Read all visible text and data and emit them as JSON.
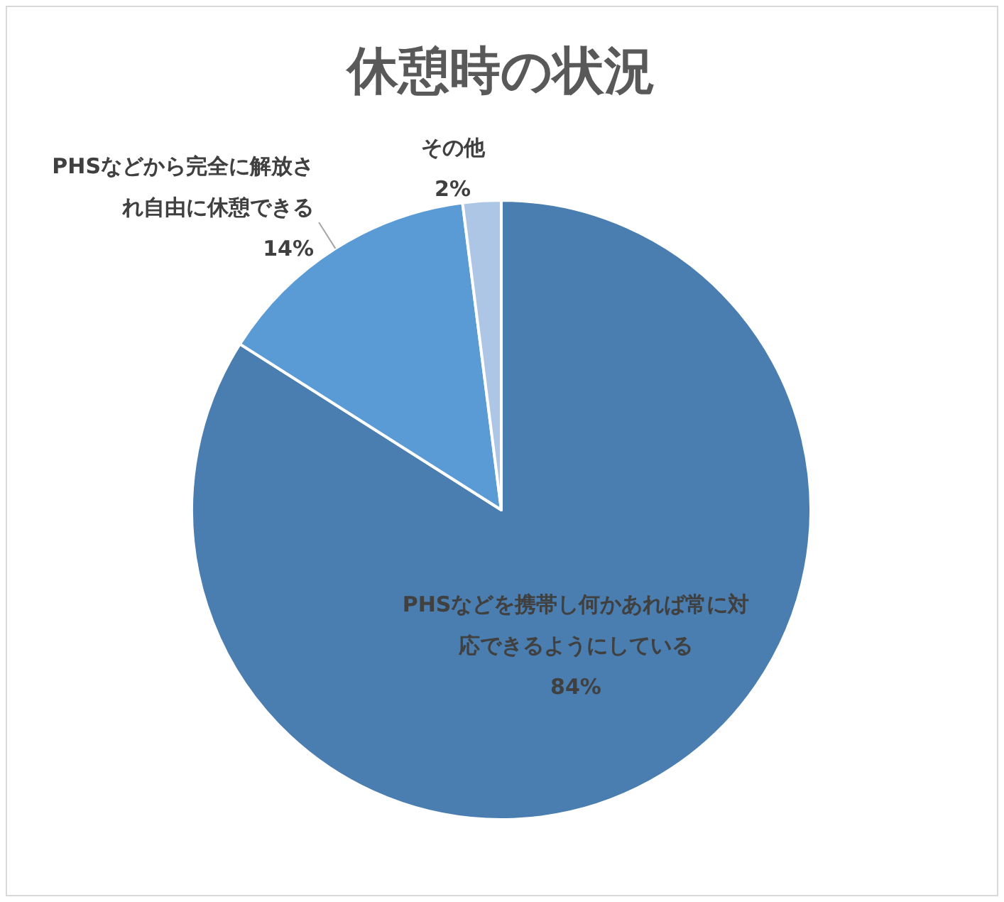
{
  "chart_data": {
    "type": "pie",
    "title": "休憩時の状況",
    "categories": [
      "PHSなどを携帯し何かあれば常に対応できるようにしている",
      "PHSなどから完全に解放され自由に休憩できる",
      "その他"
    ],
    "values": [
      84,
      14,
      2
    ],
    "colors": [
      "#4a7eb0",
      "#5b9bd5",
      "#aec6e6"
    ],
    "value_labels": [
      "84%",
      "14%",
      "2%"
    ]
  }
}
